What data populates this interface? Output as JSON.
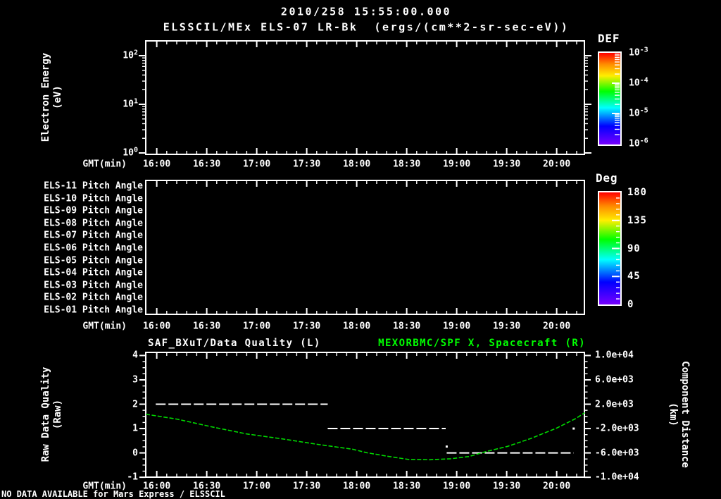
{
  "colors": {
    "background": "#000000",
    "foreground": "#ffffff",
    "accent_green": "#00ff00",
    "curve_green": "#00d800",
    "rainbow_top_to_bottom": [
      "#ff0000",
      "#ff8800",
      "#ffee00",
      "#00ff00",
      "#00ffff",
      "#0000ff",
      "#7700ff"
    ]
  },
  "header": {
    "datetime": "2010/258 15:55:00.000",
    "instrument_title": "ELSSCIL/MEx ELS-07 LR-Bk  (ergs/(cm**2-sr-sec-eV))"
  },
  "time_axis": {
    "label": "GMT(min)",
    "tick_labels": [
      "16:00",
      "16:30",
      "17:00",
      "17:30",
      "18:00",
      "18:30",
      "19:00",
      "19:30",
      "20:00"
    ]
  },
  "energy_panel": {
    "ylabel": "Electron Energy",
    "ylabel_units": "(eV)",
    "ytick_base": "10",
    "ytick_exponents": [
      "2",
      "1",
      "0"
    ]
  },
  "def_colorbar": {
    "title": "DEF",
    "tick_base": "10",
    "tick_exponents": [
      "-3",
      "-4",
      "-5",
      "-6"
    ]
  },
  "pitch_panel": {
    "row_labels": [
      "ELS-11 Pitch Angle",
      "ELS-10 Pitch Angle",
      "ELS-09 Pitch Angle",
      "ELS-08 Pitch Angle",
      "ELS-07 Pitch Angle",
      "ELS-06 Pitch Angle",
      "ELS-05 Pitch Angle",
      "ELS-04 Pitch Angle",
      "ELS-03 Pitch Angle",
      "ELS-02 Pitch Angle",
      "ELS-01 Pitch Angle"
    ]
  },
  "deg_colorbar": {
    "title": "Deg",
    "tick_labels": [
      "180",
      "135",
      "90",
      "45",
      "0"
    ]
  },
  "quality_panel": {
    "title_left": "SAF_BXuT/Data Quality (L)",
    "title_right": "MEXORBMC/SPF X, Spacecraft (R)",
    "ylabel_left": "Raw Data Quality",
    "ylabel_left_units": "(Raw)",
    "ytick_labels_left": [
      "4",
      "3",
      "2",
      "1",
      "0",
      "-1"
    ],
    "ytick_labels_right": [
      "1.0e+04",
      "6.0e+03",
      "2.0e+03",
      "-2.0e+03",
      "-6.0e+03",
      "-1.0e+04"
    ],
    "ylabel_right": "Component Distance",
    "ylabel_right_units": "(km)"
  },
  "footer": {
    "message": "NO DATA AVAILABLE for Mars Express / ELSSCIL"
  },
  "chart_data": [
    {
      "type": "heatmap",
      "title": "ELSSCIL/MEx ELS-07 LR-Bk electron energy spectrogram",
      "ylabel": "Electron Energy (eV)",
      "yscale": "log",
      "ylim": [
        1,
        215
      ],
      "x_unit": "GMT hours",
      "xlim": [
        15.89,
        20.28
      ],
      "xticks": [
        "16:00",
        "16:30",
        "17:00",
        "17:30",
        "18:00",
        "18:30",
        "19:00",
        "19:30",
        "20:00"
      ],
      "colorbar": {
        "title": "DEF",
        "units": "ergs/(cm**2-sr-sec-eV)",
        "scale": "log",
        "range": [
          1e-06,
          0.001
        ]
      },
      "values": "empty - no data available"
    },
    {
      "type": "heatmap",
      "title": "ELS pitch angle panels",
      "rows": [
        "ELS-11",
        "ELS-10",
        "ELS-09",
        "ELS-08",
        "ELS-07",
        "ELS-06",
        "ELS-05",
        "ELS-04",
        "ELS-03",
        "ELS-02",
        "ELS-01"
      ],
      "xlim": [
        15.89,
        20.28
      ],
      "colorbar": {
        "title": "Deg",
        "range": [
          0,
          180
        ]
      },
      "values": "empty - no data available"
    },
    {
      "type": "line",
      "xlim": [
        15.89,
        20.28
      ],
      "x_unit": "GMT hours",
      "left_axis": {
        "label": "Raw Data Quality (Raw)",
        "range": [
          -1,
          4
        ]
      },
      "right_axis": {
        "label": "Component Distance (km)",
        "range": [
          -10000,
          10000
        ]
      },
      "series": [
        {
          "name": "SAF_BXuT/Data Quality (L)",
          "axis": "left",
          "style": "white-dashed",
          "segments": [
            {
              "value": 2,
              "t_start": 15.99,
              "t_end": 17.71
            },
            {
              "value": 1,
              "t_start": 17.71,
              "t_end": 18.89
            },
            {
              "value": 0,
              "t_start": 18.9,
              "t_end": 20.17
            }
          ],
          "dots": [
            {
              "t": 20.17,
              "value": 1.0
            },
            {
              "t": 18.9,
              "value": 0.26
            }
          ]
        },
        {
          "name": "MEXORBMC/SPF X, Spacecraft (R)",
          "axis": "right",
          "style": "green-solid",
          "points": [
            [
              15.89,
              360
            ],
            [
              16.2,
              -440
            ],
            [
              16.55,
              -1720
            ],
            [
              16.9,
              -2880
            ],
            [
              17.25,
              -3680
            ],
            [
              17.61,
              -4600
            ],
            [
              17.96,
              -5400
            ],
            [
              18.1,
              -5960
            ],
            [
              18.31,
              -6560
            ],
            [
              18.52,
              -7080
            ],
            [
              18.73,
              -7120
            ],
            [
              18.94,
              -6960
            ],
            [
              19.12,
              -6600
            ],
            [
              19.3,
              -5760
            ],
            [
              19.51,
              -4920
            ],
            [
              19.74,
              -3640
            ],
            [
              20.0,
              -1920
            ],
            [
              20.19,
              -360
            ],
            [
              20.28,
              600
            ]
          ]
        }
      ]
    }
  ]
}
